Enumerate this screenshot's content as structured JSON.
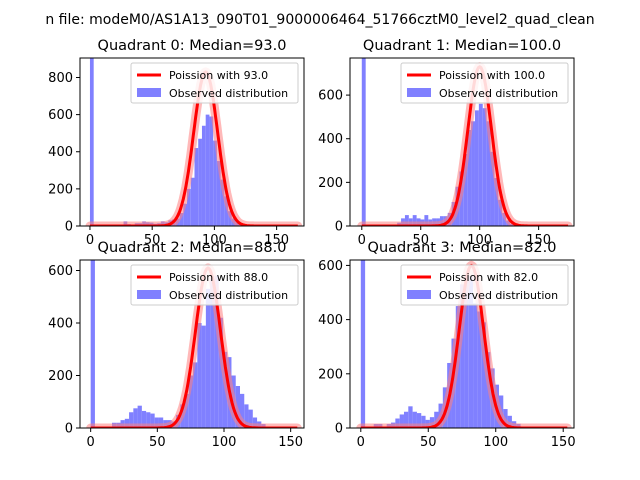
{
  "figure": {
    "suptitle": "n file: modeM0/AS1A13_090T01_9000006464_51766cztM0_level2_quad_clean"
  },
  "colors": {
    "hist": "#8080ff",
    "poisson": "#ff0000",
    "poisson_glow": "#ff8080",
    "axis": "#000000"
  },
  "chart_data": [
    {
      "type": "bar",
      "title": "Quadrant 0: Median=93.0",
      "median": 93,
      "peak": 830,
      "xlim": [
        -8,
        172
      ],
      "ylim": [
        0,
        905
      ],
      "xticks": [
        0,
        50,
        100,
        150
      ],
      "yticks": [
        0,
        200,
        400,
        600,
        800
      ],
      "legend": {
        "placement": "upper-right",
        "entries": [
          "Poission with 93.0",
          "Observed distribution"
        ]
      },
      "bin_width": 3,
      "histogram": [
        {
          "x": 0,
          "y": 905
        },
        {
          "x": 27,
          "y": 25
        },
        {
          "x": 30,
          "y": 10
        },
        {
          "x": 36,
          "y": 15
        },
        {
          "x": 39,
          "y": 15
        },
        {
          "x": 42,
          "y": 25
        },
        {
          "x": 45,
          "y": 20
        },
        {
          "x": 48,
          "y": 18
        },
        {
          "x": 51,
          "y": 12
        },
        {
          "x": 54,
          "y": 15
        },
        {
          "x": 57,
          "y": 25
        },
        {
          "x": 60,
          "y": 20
        },
        {
          "x": 63,
          "y": 30
        },
        {
          "x": 66,
          "y": 35
        },
        {
          "x": 69,
          "y": 40
        },
        {
          "x": 72,
          "y": 70
        },
        {
          "x": 75,
          "y": 120
        },
        {
          "x": 78,
          "y": 200
        },
        {
          "x": 81,
          "y": 260
        },
        {
          "x": 84,
          "y": 420
        },
        {
          "x": 87,
          "y": 470
        },
        {
          "x": 90,
          "y": 540
        },
        {
          "x": 93,
          "y": 600
        },
        {
          "x": 96,
          "y": 590
        },
        {
          "x": 99,
          "y": 460
        },
        {
          "x": 102,
          "y": 350
        },
        {
          "x": 105,
          "y": 250
        },
        {
          "x": 108,
          "y": 160
        },
        {
          "x": 111,
          "y": 80
        },
        {
          "x": 114,
          "y": 40
        },
        {
          "x": 117,
          "y": 20
        },
        {
          "x": 120,
          "y": 10
        }
      ]
    },
    {
      "type": "bar",
      "title": "Quadrant 1: Median=100.0",
      "median": 100,
      "peak": 730,
      "xlim": [
        -10,
        180
      ],
      "ylim": [
        0,
        770
      ],
      "xticks": [
        0,
        50,
        100,
        150
      ],
      "yticks": [
        0,
        200,
        400,
        600
      ],
      "legend": {
        "placement": "upper-right",
        "entries": [
          "Poission with 100.0",
          "Observed distribution"
        ]
      },
      "bin_width": 3.3,
      "histogram": [
        {
          "x": 0,
          "y": 770
        },
        {
          "x": 30,
          "y": 15
        },
        {
          "x": 33.3,
          "y": 35
        },
        {
          "x": 36.6,
          "y": 50
        },
        {
          "x": 39.9,
          "y": 35
        },
        {
          "x": 43.2,
          "y": 50
        },
        {
          "x": 46.5,
          "y": 35
        },
        {
          "x": 49.8,
          "y": 30
        },
        {
          "x": 53.1,
          "y": 50
        },
        {
          "x": 56.4,
          "y": 30
        },
        {
          "x": 59.7,
          "y": 35
        },
        {
          "x": 63,
          "y": 35
        },
        {
          "x": 66.3,
          "y": 45
        },
        {
          "x": 69.6,
          "y": 45
        },
        {
          "x": 72.9,
          "y": 60
        },
        {
          "x": 76.2,
          "y": 110
        },
        {
          "x": 79.5,
          "y": 180
        },
        {
          "x": 82.8,
          "y": 250
        },
        {
          "x": 86.1,
          "y": 330
        },
        {
          "x": 89.4,
          "y": 440
        },
        {
          "x": 92.7,
          "y": 480
        },
        {
          "x": 96,
          "y": 530
        },
        {
          "x": 99.3,
          "y": 560
        },
        {
          "x": 102.6,
          "y": 540
        },
        {
          "x": 105.9,
          "y": 480
        },
        {
          "x": 109.2,
          "y": 340
        },
        {
          "x": 112.5,
          "y": 220
        },
        {
          "x": 115.8,
          "y": 120
        },
        {
          "x": 119.1,
          "y": 60
        },
        {
          "x": 122.4,
          "y": 25
        },
        {
          "x": 125.7,
          "y": 10
        }
      ]
    },
    {
      "type": "bar",
      "title": "Quadrant 2: Median=88.0",
      "median": 88,
      "peak": 610,
      "xlim": [
        -8,
        160
      ],
      "ylim": [
        0,
        640
      ],
      "xticks": [
        0,
        50,
        100,
        150
      ],
      "yticks": [
        0,
        200,
        400,
        600
      ],
      "legend": {
        "placement": "upper-right",
        "entries": [
          "Poission with 88.0",
          "Observed distribution"
        ]
      },
      "bin_width": 3.2,
      "histogram": [
        {
          "x": 0,
          "y": 640
        },
        {
          "x": 16,
          "y": 20
        },
        {
          "x": 19.2,
          "y": 20
        },
        {
          "x": 22.4,
          "y": 30
        },
        {
          "x": 25.6,
          "y": 35
        },
        {
          "x": 28.8,
          "y": 60
        },
        {
          "x": 32,
          "y": 75
        },
        {
          "x": 35.2,
          "y": 85
        },
        {
          "x": 38.4,
          "y": 65
        },
        {
          "x": 41.6,
          "y": 60
        },
        {
          "x": 44.8,
          "y": 55
        },
        {
          "x": 48,
          "y": 40
        },
        {
          "x": 51.2,
          "y": 40
        },
        {
          "x": 54.4,
          "y": 30
        },
        {
          "x": 57.6,
          "y": 30
        },
        {
          "x": 60.8,
          "y": 25
        },
        {
          "x": 64,
          "y": 50
        },
        {
          "x": 67.2,
          "y": 90
        },
        {
          "x": 70.4,
          "y": 130
        },
        {
          "x": 73.6,
          "y": 200
        },
        {
          "x": 76.8,
          "y": 250
        },
        {
          "x": 80,
          "y": 400
        },
        {
          "x": 83.2,
          "y": 390
        },
        {
          "x": 86.4,
          "y": 530
        },
        {
          "x": 89.6,
          "y": 570
        },
        {
          "x": 92.8,
          "y": 580
        },
        {
          "x": 96,
          "y": 420
        },
        {
          "x": 99.2,
          "y": 290
        },
        {
          "x": 102.4,
          "y": 270
        },
        {
          "x": 105.6,
          "y": 200
        },
        {
          "x": 108.8,
          "y": 160
        },
        {
          "x": 112,
          "y": 130
        },
        {
          "x": 115.2,
          "y": 90
        },
        {
          "x": 118.4,
          "y": 70
        },
        {
          "x": 121.6,
          "y": 40
        },
        {
          "x": 124.8,
          "y": 25
        },
        {
          "x": 128,
          "y": 15
        }
      ]
    },
    {
      "type": "bar",
      "title": "Quadrant 3: Median=82.0",
      "median": 82,
      "peak": 600,
      "xlim": [
        -8,
        158
      ],
      "ylim": [
        0,
        620
      ],
      "xticks": [
        0,
        50,
        100,
        150
      ],
      "yticks": [
        0,
        200,
        400,
        600
      ],
      "legend": {
        "placement": "upper-right",
        "entries": [
          "Poission with 82.0",
          "Observed distribution"
        ]
      },
      "bin_width": 3.2,
      "histogram": [
        {
          "x": 0,
          "y": 620
        },
        {
          "x": 9.6,
          "y": 15
        },
        {
          "x": 12.8,
          "y": 15
        },
        {
          "x": 19.2,
          "y": 15
        },
        {
          "x": 22.4,
          "y": 20
        },
        {
          "x": 25.6,
          "y": 35
        },
        {
          "x": 28.8,
          "y": 50
        },
        {
          "x": 32,
          "y": 60
        },
        {
          "x": 35.2,
          "y": 80
        },
        {
          "x": 38.4,
          "y": 60
        },
        {
          "x": 41.6,
          "y": 55
        },
        {
          "x": 44.8,
          "y": 45
        },
        {
          "x": 48,
          "y": 30
        },
        {
          "x": 51.2,
          "y": 40
        },
        {
          "x": 54.4,
          "y": 60
        },
        {
          "x": 57.6,
          "y": 90
        },
        {
          "x": 60.8,
          "y": 150
        },
        {
          "x": 64,
          "y": 240
        },
        {
          "x": 67.2,
          "y": 330
        },
        {
          "x": 70.4,
          "y": 450
        },
        {
          "x": 73.6,
          "y": 530
        },
        {
          "x": 76.8,
          "y": 560
        },
        {
          "x": 80,
          "y": 560
        },
        {
          "x": 83.2,
          "y": 460
        },
        {
          "x": 86.4,
          "y": 430
        },
        {
          "x": 89.6,
          "y": 390
        },
        {
          "x": 92.8,
          "y": 280
        },
        {
          "x": 96,
          "y": 220
        },
        {
          "x": 99.2,
          "y": 160
        },
        {
          "x": 102.4,
          "y": 120
        },
        {
          "x": 105.6,
          "y": 70
        },
        {
          "x": 108.8,
          "y": 45
        },
        {
          "x": 112,
          "y": 25
        },
        {
          "x": 115.2,
          "y": 15
        }
      ]
    }
  ]
}
